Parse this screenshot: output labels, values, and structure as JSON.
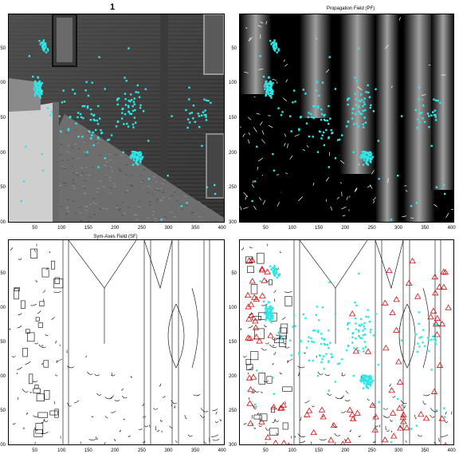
{
  "titles": {
    "tl": "1",
    "tr": "Propagation Field (PF)",
    "bl": "Sym-Axes Field (SF)",
    "br": ""
  },
  "axes": {
    "x_ticks": [
      "50",
      "100",
      "150",
      "200",
      "250",
      "300",
      "350",
      "400"
    ],
    "x_values": [
      50,
      100,
      150,
      200,
      250,
      300,
      350,
      400
    ],
    "y_ticks": [
      "50",
      "100",
      "150",
      "200",
      "250",
      "300"
    ],
    "y_values": [
      50,
      100,
      150,
      200,
      250,
      300
    ],
    "x_range": [
      0,
      405
    ],
    "y_range": [
      0,
      300
    ]
  },
  "colors": {
    "points": "#2fe6e6",
    "triangles": "#d01010",
    "pf_bg": "#000000",
    "sf_bg": "#ffffff"
  }
}
